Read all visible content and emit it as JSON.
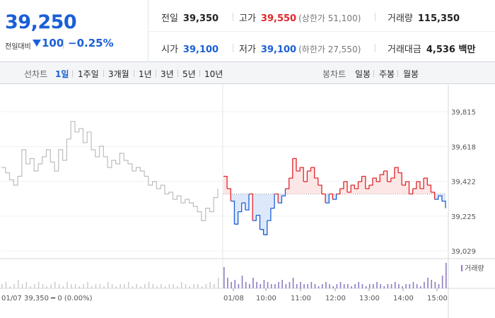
{
  "quote": {
    "price": "39,250",
    "change_label": "전일대비",
    "change_value": "100",
    "change_rate": "−0.25%"
  },
  "stats": {
    "prev_close": {
      "label": "전일",
      "value": "39,350"
    },
    "high": {
      "label": "고가",
      "value": "39,550",
      "sub": "(상한가 51,100)"
    },
    "volume": {
      "label": "거래량",
      "value": "115,350"
    },
    "open": {
      "label": "시가",
      "value": "39,100"
    },
    "low": {
      "label": "저가",
      "value": "39,100",
      "sub": "(하한가 27,550)"
    },
    "turnover": {
      "label": "거래대금",
      "value": "4,536 백만"
    }
  },
  "period_tabs": {
    "header": "선차트",
    "items": [
      "1일",
      "1주일",
      "3개월",
      "1년",
      "3년",
      "5년",
      "10년"
    ],
    "active": "1일"
  },
  "candle_tabs": {
    "header": "봉차트",
    "items": [
      "일봉",
      "주봉",
      "월봉"
    ]
  },
  "colors": {
    "up": "#e0262a",
    "down": "#1b5fd6",
    "prev": "#bdbdbd"
  },
  "chart_data": {
    "type": "line",
    "baseline": 39350,
    "ylim": [
      39029,
      39815
    ],
    "yticks": [
      39815,
      39618,
      39422,
      39225,
      39029
    ],
    "ytick_labels": [
      "39,815",
      "39,618",
      "39,422",
      "39,225",
      "39,029"
    ],
    "prev_day_label": "01/07  39,350 ━ 0 (0.00%)",
    "xtick_labels": [
      "01/08",
      "10:00",
      "11:00",
      "12:00",
      "13:00",
      "14:00",
      "15:00"
    ],
    "volume_label": "거래량",
    "prev_day_series": [
      39500,
      39470,
      39430,
      39400,
      39450,
      39600,
      39520,
      39550,
      39480,
      39520,
      39560,
      39600,
      39530,
      39480,
      39600,
      39540,
      39660,
      39760,
      39700,
      39720,
      39640,
      39700,
      39600,
      39560,
      39620,
      39560,
      39500,
      39540,
      39520,
      39580,
      39540,
      39520,
      39480,
      39500,
      39480,
      39450,
      39400,
      39420,
      39380,
      39400,
      39350,
      39360,
      39320,
      39340,
      39300,
      39320,
      39300,
      39280,
      39250,
      39200,
      39270,
      39250,
      39330,
      39380
    ],
    "today_series": [
      39450,
      39380,
      39310,
      39180,
      39250,
      39300,
      39260,
      39350,
      39200,
      39230,
      39150,
      39120,
      39200,
      39270,
      39350,
      39300,
      39340,
      39380,
      39440,
      39550,
      39480,
      39500,
      39420,
      39480,
      39500,
      39440,
      39400,
      39350,
      39300,
      39350,
      39320,
      39350,
      39380,
      39420,
      39360,
      39400,
      39380,
      39420,
      39450,
      39380,
      39400,
      39440,
      39420,
      39460,
      39480,
      39420,
      39440,
      39500,
      39470,
      39400,
      39420,
      39350,
      39380,
      39420,
      39380,
      39440,
      39400,
      39360,
      39320,
      39340,
      39310,
      39270
    ],
    "prev_day_volume": [
      2,
      3,
      1,
      2,
      4,
      2,
      3,
      1,
      2,
      3,
      2,
      1,
      2,
      3,
      2,
      1,
      3,
      2,
      2,
      1,
      2,
      3,
      1,
      2,
      2,
      1,
      3,
      2,
      1,
      2,
      2,
      3,
      1,
      2,
      1,
      2,
      3,
      2,
      1,
      2,
      1,
      2,
      2,
      1,
      3,
      2,
      1,
      2,
      2,
      1,
      2,
      3,
      2,
      5
    ],
    "today_volume": [
      10,
      5,
      3,
      4,
      2,
      6,
      3,
      2,
      5,
      3,
      2,
      4,
      3,
      2,
      2,
      3,
      4,
      2,
      3,
      5,
      2,
      3,
      2,
      2,
      3,
      2,
      1,
      2,
      3,
      2,
      1,
      2,
      3,
      2,
      2,
      1,
      2,
      3,
      2,
      1,
      2,
      2,
      3,
      2,
      1,
      2,
      2,
      3,
      2,
      1,
      2,
      2,
      3,
      2,
      1,
      3,
      5,
      4,
      3,
      2,
      6,
      12
    ]
  }
}
